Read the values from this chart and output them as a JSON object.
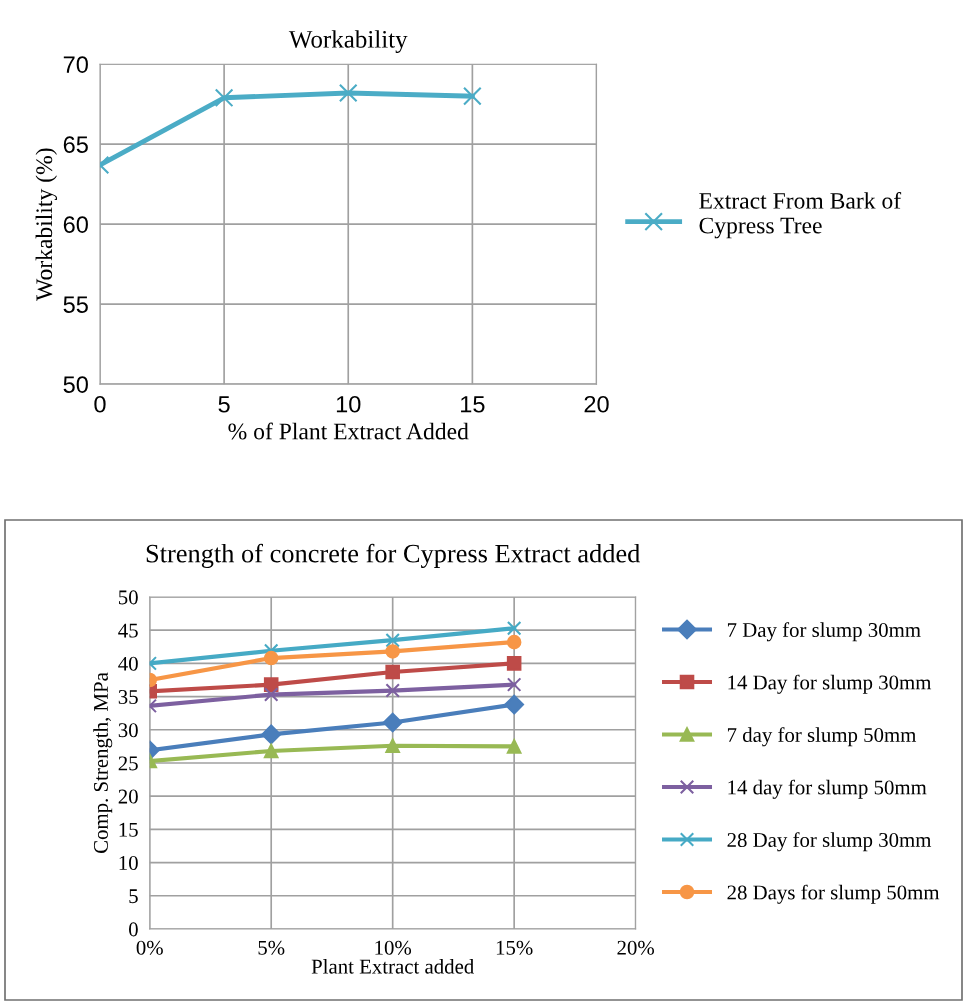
{
  "chart_data": [
    {
      "type": "line",
      "title": "Workability",
      "xlabel": "% of Plant Extract Added",
      "ylabel": "Workability (%)",
      "x": [
        0,
        5,
        10,
        15
      ],
      "xlim": [
        0,
        20
      ],
      "xticks": [
        0,
        5,
        10,
        15,
        20
      ],
      "ylim": [
        50,
        70
      ],
      "yticks": [
        50,
        55,
        60,
        65,
        70
      ],
      "grid": true,
      "legend": "right",
      "marker": "cross",
      "series": [
        {
          "name": "Extract From Bark of Cypress Tree",
          "color": "#4bacc6",
          "values": [
            63.7,
            67.9,
            68.2,
            68.0
          ]
        }
      ]
    },
    {
      "type": "line",
      "title": "Strength of concrete for Cypress Extract added",
      "xlabel": "Plant Extract added",
      "ylabel": "Comp. Strength, MPa",
      "x": [
        0,
        5,
        10,
        15
      ],
      "xlim": [
        0,
        20
      ],
      "xticks": [
        {
          "value": 0,
          "label": "0%"
        },
        {
          "value": 5,
          "label": "5%"
        },
        {
          "value": 10,
          "label": "10%"
        },
        {
          "value": 15,
          "label": "15%"
        },
        {
          "value": 20,
          "label": "20%"
        }
      ],
      "ylim": [
        0,
        50
      ],
      "yticks": [
        0,
        5,
        10,
        15,
        20,
        25,
        30,
        35,
        40,
        45,
        50
      ],
      "grid": true,
      "legend": "right",
      "series": [
        {
          "name": "7 Day for slump 30mm",
          "color": "#4a7ebb",
          "marker": "diamond",
          "values": [
            26.9,
            29.3,
            31.1,
            33.8
          ]
        },
        {
          "name": "14 Day for slump 30mm",
          "color": "#be4b48",
          "marker": "square",
          "values": [
            35.8,
            36.8,
            38.7,
            40.0
          ]
        },
        {
          "name": "7 day for slump 50mm",
          "color": "#98b954",
          "marker": "triangle",
          "values": [
            25.3,
            26.8,
            27.6,
            27.5
          ]
        },
        {
          "name": "14 day for slump 50mm",
          "color": "#7d60a0",
          "marker": "cross",
          "values": [
            33.6,
            35.3,
            35.9,
            36.8
          ]
        },
        {
          "name": "28 Day for slump 30mm",
          "color": "#46aac5",
          "marker": "cross",
          "values": [
            40.0,
            41.9,
            43.5,
            45.3
          ]
        },
        {
          "name": "28 Days for slump 50mm",
          "color": "#f79646",
          "marker": "circle",
          "values": [
            37.5,
            40.8,
            41.8,
            43.2
          ]
        }
      ]
    }
  ]
}
